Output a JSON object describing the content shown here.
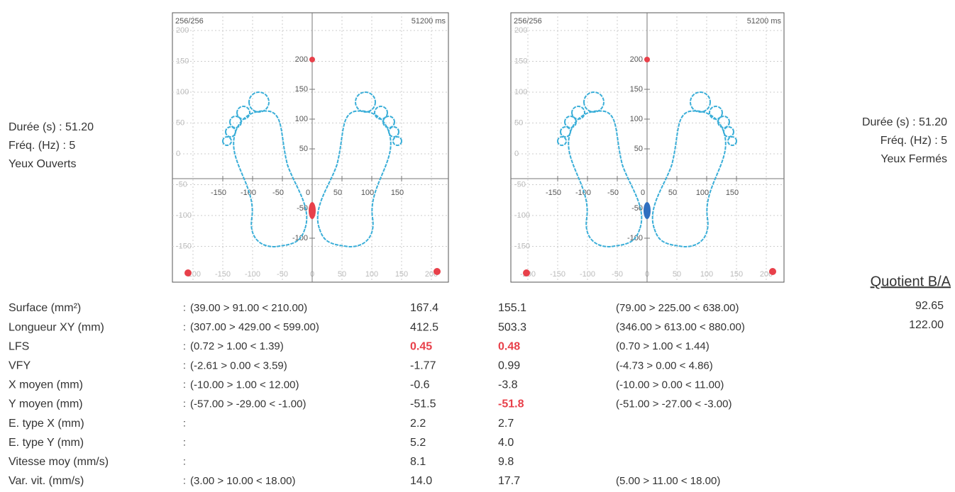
{
  "info_left": [
    "Durée (s) : 51.20",
    "Fréq. (Hz) : 5",
    "Yeux Ouverts"
  ],
  "info_right": [
    "Durée (s) : 51.20",
    "Fréq. (Hz) : 5",
    "Yeux Fermés"
  ],
  "quotient": {
    "title": "Quotient B/A",
    "values": [
      "92.65",
      "122.00"
    ]
  },
  "panels": [
    {
      "count": "256/256",
      "duration": "51200 ms"
    },
    {
      "count": "256/256",
      "duration": "51200 ms"
    }
  ],
  "plot_axes": {
    "y_ticks": [
      200,
      150,
      100,
      50,
      -50,
      -100
    ],
    "x_ticks": [
      -150,
      -100,
      -50,
      0,
      50,
      100,
      150
    ],
    "frame_y_ticks": [
      200,
      150,
      100,
      50,
      0,
      -50,
      -100,
      -150
    ],
    "frame_x_ticks": [
      -200,
      -150,
      -100,
      -50,
      0,
      50,
      100,
      150,
      200
    ]
  },
  "table": {
    "separator": ":",
    "rows": [
      {
        "label": "Surface (mm²)",
        "range_a": "(39.00 > 91.00 < 210.00)",
        "value_a": "167.4",
        "value_b": "155.1",
        "range_b": "(79.00 > 225.00 < 638.00)"
      },
      {
        "label": "Longueur XY (mm)",
        "range_a": "(307.00 > 429.00 < 599.00)",
        "value_a": "412.5",
        "value_b": "503.3",
        "range_b": "(346.00 > 613.00 < 880.00)"
      },
      {
        "label": "LFS",
        "range_a": "(0.72 > 1.00 < 1.39)",
        "value_a": "0.45",
        "alert_a": true,
        "value_b": "0.48",
        "alert_b": true,
        "range_b": "(0.70 > 1.00 < 1.44)"
      },
      {
        "label": "VFY",
        "range_a": "(-2.61 > 0.00 < 3.59)",
        "value_a": "-1.77",
        "value_b": "0.99",
        "range_b": "(-4.73 > 0.00 < 4.86)"
      },
      {
        "label": "X moyen (mm)",
        "range_a": "(-10.00 > 1.00 < 12.00)",
        "value_a": "-0.6",
        "value_b": "-3.8",
        "range_b": "(-10.00 > 0.00 < 11.00)"
      },
      {
        "label": "Y moyen (mm)",
        "range_a": "(-57.00 > -29.00 < -1.00)",
        "value_a": "-51.5",
        "value_b": "-51.8",
        "alert_b": true,
        "range_b": "(-51.00 > -27.00 < -3.00)"
      },
      {
        "label": "E. type X (mm)",
        "value_a": "2.2",
        "value_b": "2.7"
      },
      {
        "label": "E. type Y (mm)",
        "value_a": "5.2",
        "value_b": "4.0"
      },
      {
        "label": "Vitesse moy (mm/s)",
        "value_a": "8.1",
        "value_b": "9.8"
      },
      {
        "label": "Var. vit. (mm/s)",
        "range_a": "(3.00 > 10.00 < 18.00)",
        "value_a": "14.0",
        "value_b": "17.7",
        "range_b": "(5.00 > 11.00 < 18.00)"
      }
    ]
  }
}
